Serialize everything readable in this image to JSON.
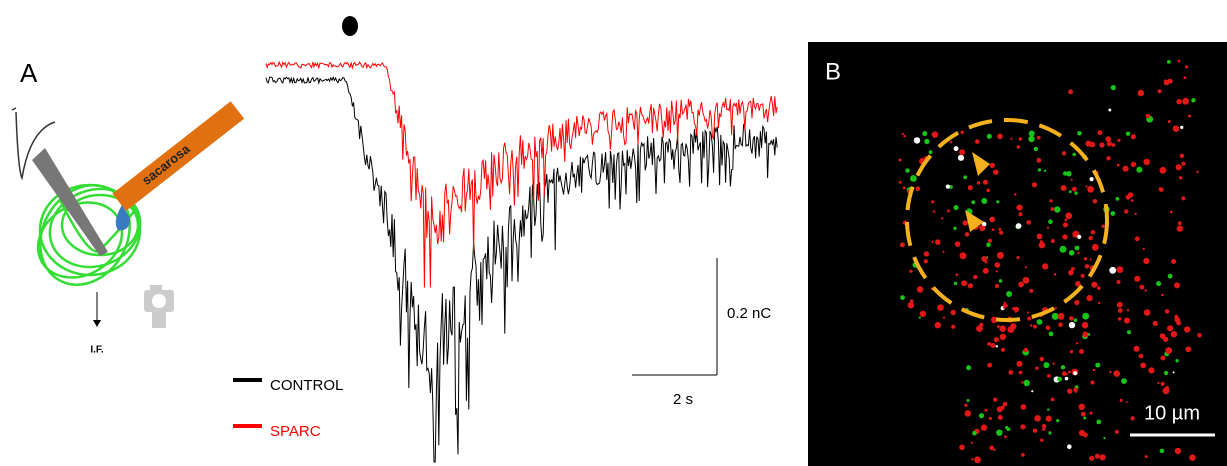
{
  "panel_a": {
    "label": "A",
    "pipette_label": "sacarosa",
    "output_label": "I.F.",
    "legend": [
      {
        "name": "CONTROL",
        "color": "#000000"
      },
      {
        "name": "SPARC",
        "color": "#ff0000"
      }
    ],
    "scale_y": "0.2 nC",
    "scale_x": "2 s"
  },
  "panel_b": {
    "label": "B",
    "scale": "10 µm"
  }
}
